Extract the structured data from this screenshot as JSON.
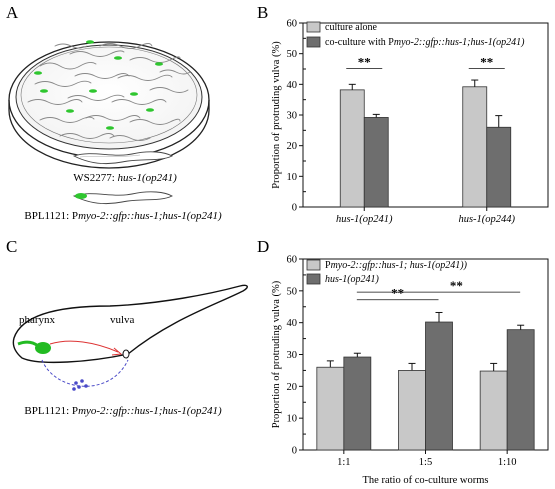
{
  "panels": {
    "A": {
      "letter": "A",
      "strain1": {
        "name": "WS2277: ",
        "genotype": "hus-1(op241)"
      },
      "strain2": {
        "name": "BPL1121: P",
        "genotype": "myo-2::gfp::hus-1;hus-1(op241)"
      }
    },
    "B": {
      "letter": "B"
    },
    "C": {
      "letter": "C",
      "pharynx": "pharynx",
      "vulva": "vulva",
      "caption": {
        "name": "BPL1121: P",
        "genotype": "myo-2::gfp::hus-1;hus-1(op241)"
      }
    },
    "D": {
      "letter": "D"
    }
  },
  "chart_data": [
    {
      "panel": "B",
      "type": "bar",
      "ylabel": "Proportion of protruding vulva (%)",
      "xlabel": "",
      "ylim": [
        0,
        60
      ],
      "yticks": [
        0,
        10,
        20,
        30,
        40,
        50,
        60
      ],
      "categories": [
        "hus-1(op241)",
        "hus-1(op244)"
      ],
      "series": [
        {
          "name": "culture alone",
          "color": "#c8c8c8",
          "values": [
            38.2,
            39.2
          ],
          "errors": [
            1.8,
            2.2
          ]
        },
        {
          "name_prefix": "co-culture with P",
          "name": "myo-2::gfp::hus-1;hus-1(op241)",
          "color": "#6e6e6e",
          "values": [
            29.2,
            26.0
          ],
          "errors": [
            1.0,
            3.8
          ]
        }
      ],
      "significance": [
        "**",
        "**"
      ],
      "legend": "top-right"
    },
    {
      "panel": "D",
      "type": "bar",
      "ylabel": "Proportion of protruding vulva (%)",
      "xlabel": "The ratio of co-culture worms",
      "ylim": [
        0,
        60
      ],
      "yticks": [
        0,
        10,
        20,
        30,
        40,
        50,
        60
      ],
      "categories": [
        "1:1",
        "1:5",
        "1:10"
      ],
      "series": [
        {
          "name_prefix": "P",
          "name": "myo-2::gfp::hus-1; hus-1(op241))",
          "color": "#c8c8c8",
          "values": [
            26.0,
            25.0,
            24.8
          ],
          "errors": [
            2.0,
            2.2,
            2.4
          ]
        },
        {
          "name": "hus-1(op241)",
          "color": "#6e6e6e",
          "values": [
            29.2,
            40.2,
            37.8
          ],
          "errors": [
            1.2,
            3.0,
            1.4
          ]
        }
      ],
      "significance": [
        "**",
        "**"
      ],
      "legend": "top-left"
    }
  ]
}
